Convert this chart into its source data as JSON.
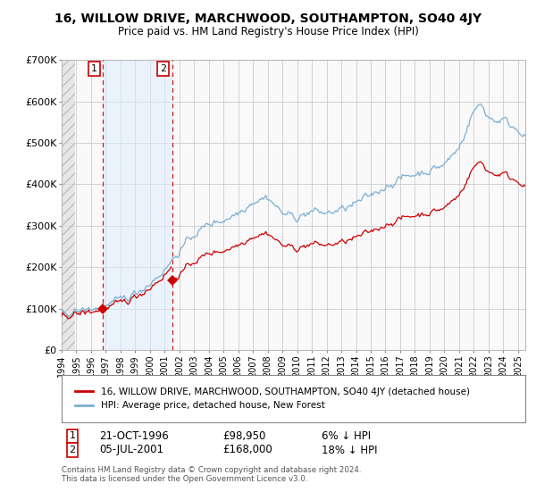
{
  "title": "16, WILLOW DRIVE, MARCHWOOD, SOUTHAMPTON, SO40 4JY",
  "subtitle": "Price paid vs. HM Land Registry's House Price Index (HPI)",
  "ylabel_ticks": [
    "£0",
    "£100K",
    "£200K",
    "£300K",
    "£400K",
    "£500K",
    "£600K",
    "£700K"
  ],
  "ylim": [
    0,
    700000
  ],
  "xlim_start": 1994.0,
  "xlim_end": 2025.5,
  "sale1_year": 1996.8,
  "sale1_price": 98950,
  "sale1_label": "1",
  "sale1_date": "21-OCT-1996",
  "sale1_desc": "£98,950",
  "sale1_hpi": "6% ↓ HPI",
  "sale2_year": 2001.5,
  "sale2_price": 168000,
  "sale2_label": "2",
  "sale2_date": "05-JUL-2001",
  "sale2_desc": "£168,000",
  "sale2_hpi": "18% ↓ HPI",
  "house_color": "#cc0000",
  "hpi_color": "#7bafd4",
  "background_color": "#ffffff",
  "plot_bg_color": "#f9f9f9",
  "grid_color": "#cccccc",
  "sale_vline_color": "#cc0000",
  "shade_color": "#ddeeff",
  "legend_house": "16, WILLOW DRIVE, MARCHWOOD, SOUTHAMPTON, SO40 4JY (detached house)",
  "legend_hpi": "HPI: Average price, detached house, New Forest",
  "footnote": "Contains HM Land Registry data © Crown copyright and database right 2024.\nThis data is licensed under the Open Government Licence v3.0."
}
